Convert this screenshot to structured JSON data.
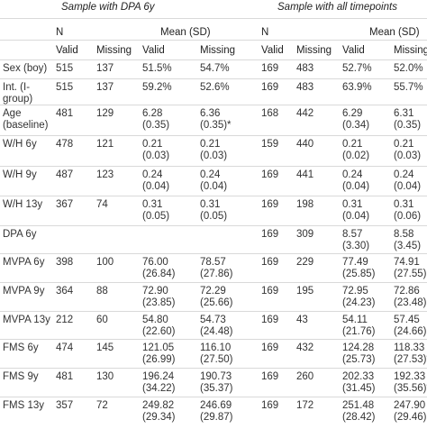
{
  "groups": [
    {
      "label": "Sample with DPA 6y"
    },
    {
      "label": "Sample with all timepoints"
    }
  ],
  "header": {
    "n": "N",
    "mean_sd": "Mean (SD)",
    "sub": [
      "Valid",
      "Missing",
      "Valid",
      "Missing"
    ]
  },
  "rows": [
    {
      "label": [
        "Sex (boy)"
      ],
      "a": [
        "515",
        "137",
        "51.5%",
        "54.7%"
      ],
      "b": [
        "169",
        "483",
        "52.7%",
        "52.0%"
      ]
    },
    {
      "label": [
        "Int. (I-",
        "group)"
      ],
      "a": [
        "515",
        "137",
        "59.2%",
        "52.6%"
      ],
      "b": [
        "169",
        "483",
        "63.9%",
        "55.7%"
      ]
    },
    {
      "label": [
        "Age",
        "(baseline)"
      ],
      "a": [
        "481",
        "129",
        "6.28|(0.35)",
        "6.36|(0.35)*"
      ],
      "b": [
        "168",
        "442",
        "6.29|(0.34)",
        "6.31|(0.35)"
      ]
    },
    {
      "label": [
        "W/H 6y"
      ],
      "a": [
        "478",
        "121",
        "0.21|(0.03)",
        "0.21|(0.03)"
      ],
      "b": [
        "159",
        "440",
        "0.21|(0.02)",
        "0.21|(0.03)"
      ]
    },
    {
      "label": [
        "W/H 9y"
      ],
      "a": [
        "487",
        "123",
        "0.24|(0.04)",
        "0.24|(0.04)"
      ],
      "b": [
        "169",
        "441",
        "0.24|(0.04)",
        "0.24|(0.04)"
      ]
    },
    {
      "label": [
        "W/H 13y"
      ],
      "a": [
        "367",
        "74",
        "0.31|(0.05)",
        "0.31|(0.05)"
      ],
      "b": [
        "169",
        "198",
        "0.31|(0.04)",
        "0.31|(0.06)"
      ]
    },
    {
      "label": [
        "DPA 6y"
      ],
      "a": [
        "",
        "",
        "",
        ""
      ],
      "b": [
        "169",
        "309",
        "8.57|(3.30)",
        "8.58|(3.45)"
      ]
    },
    {
      "label": [
        "MVPA 6y"
      ],
      "a": [
        "398",
        "100",
        "76.00|(26.84)",
        "78.57|(27.86)"
      ],
      "b": [
        "169",
        "229",
        "77.49|(25.85)",
        "74.91|(27.55)"
      ]
    },
    {
      "label": [
        "MVPA 9y"
      ],
      "a": [
        "364",
        "88",
        "72.90|(23.85)",
        "72.29|(25.66)"
      ],
      "b": [
        "169",
        "195",
        "72.95|(24.23)",
        "72.86|(23.48)"
      ]
    },
    {
      "label": [
        "MVPA 13y"
      ],
      "a": [
        "212",
        "60",
        "54.80|(22.60)",
        "54.73|(24.48)"
      ],
      "b": [
        "169",
        "43",
        "54.11|(21.76)",
        "57.45|(24.66)"
      ]
    },
    {
      "label": [
        "FMS 6y"
      ],
      "a": [
        "474",
        "145",
        "121.05|(26.99)",
        "116.10|(27.50)"
      ],
      "b": [
        "169",
        "432",
        "124.28|(25.73)",
        "118.33|(27.53)*"
      ]
    },
    {
      "label": [
        "FMS 9y"
      ],
      "a": [
        "481",
        "130",
        "196.24|(34.22)",
        "190.73|(35.37)"
      ],
      "b": [
        "169",
        "260",
        "202.33|(31.45)",
        "192.33|(35.56)*"
      ]
    },
    {
      "label": [
        "FMS 13y"
      ],
      "a": [
        "357",
        "72",
        "249.82|(29.34)",
        "246.69|(29.87)"
      ],
      "b": [
        "169",
        "172",
        "251.48|(28.42)",
        "247.90|(29.46)"
      ]
    }
  ]
}
